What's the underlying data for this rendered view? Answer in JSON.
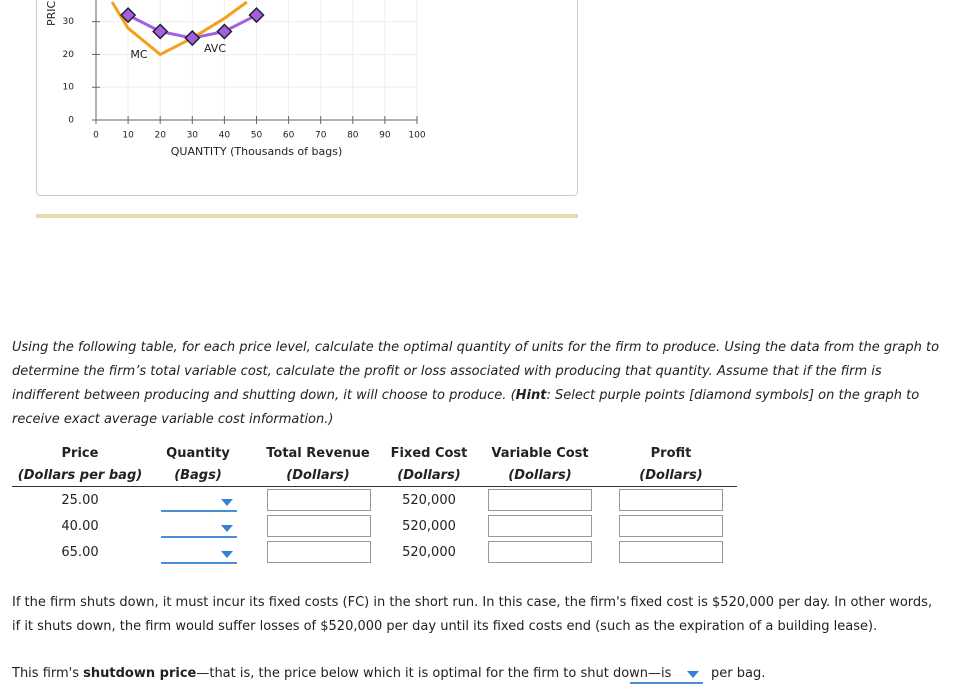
{
  "chart_data": {
    "type": "line",
    "x_label": "QUANTITY (Thousands of bags)",
    "y_label": "PRIC",
    "xlim": [
      0,
      100
    ],
    "ylim": [
      0,
      36
    ],
    "xticks": [
      0,
      10,
      20,
      30,
      40,
      50,
      60,
      70,
      80,
      90,
      100
    ],
    "yticks": [
      0,
      10,
      20,
      30
    ],
    "grid": true,
    "series": [
      {
        "name": "MC",
        "color": "#f5a01a",
        "x": [
          5,
          10,
          20,
          30,
          40,
          47
        ],
        "values": [
          36,
          28,
          20,
          25,
          31,
          36
        ]
      },
      {
        "name": "AVC",
        "color": "#a35ee3",
        "marker": "diamond",
        "x": [
          10,
          20,
          30,
          40,
          50
        ],
        "values": [
          32,
          27,
          25,
          27,
          32
        ]
      }
    ]
  },
  "instructions": {
    "intro": "Using the following table, for each price level, calculate the optimal quantity of units for the firm to produce. Using the data from the graph to determine the firm’s total variable cost, calculate the profit or loss associated with producing that quantity. Assume that if the firm is indifferent between producing and shutting down, it will choose to produce. (",
    "hint": "Hint",
    "rest": ": Select purple points [diamond symbols] on the graph to receive exact average variable cost information.)"
  },
  "table": {
    "headers": [
      [
        "Price",
        "(Dollars per bag)"
      ],
      [
        "Quantity",
        "(Bags)"
      ],
      [
        "Total Revenue",
        "(Dollars)"
      ],
      [
        "Fixed Cost",
        "(Dollars)"
      ],
      [
        "Variable Cost",
        "(Dollars)"
      ],
      [
        "Profit",
        "(Dollars)"
      ]
    ],
    "rows": [
      [
        "25.00",
        "520,000"
      ],
      [
        "40.00",
        "520,000"
      ],
      [
        "65.00",
        "520,000"
      ]
    ]
  },
  "note": "If the firm shuts down, it must incur its fixed costs (FC) in the short run. In this case, the firm's fixed cost is $520,000 per day. In other words, if it shuts down, the firm would suffer losses of $520,000 per day until its fixed costs end (such as the expiration of a building lease).",
  "shutdown": {
    "prefix": "This firm's ",
    "bold": "shutdown price",
    "suffix": "—that is, the price below which it is optimal for the firm to shut down—is",
    "unit": "per bag."
  }
}
